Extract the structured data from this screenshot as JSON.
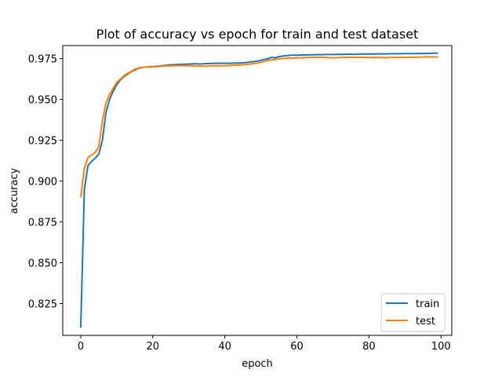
{
  "chart_data": {
    "type": "line",
    "title": "Plot of accuracy vs epoch for train and test dataset",
    "xlabel": "epoch",
    "ylabel": "accuracy",
    "xlim": [
      -5,
      103
    ],
    "ylim": [
      0.8055,
      0.983
    ],
    "xticks": [
      0,
      20,
      40,
      60,
      80,
      100
    ],
    "yticks": [
      0.825,
      0.85,
      0.875,
      0.9,
      0.925,
      0.95,
      0.975
    ],
    "ytick_labels": [
      "0.825",
      "0.850",
      "0.875",
      "0.900",
      "0.925",
      "0.950",
      "0.975"
    ],
    "grid": false,
    "legend_position": "lower right",
    "x": [
      0,
      1,
      2,
      3,
      4,
      5,
      6,
      7,
      8,
      9,
      10,
      11,
      12,
      13,
      14,
      15,
      16,
      17,
      18,
      19,
      20,
      21,
      22,
      23,
      24,
      25,
      26,
      27,
      28,
      29,
      30,
      31,
      32,
      33,
      34,
      35,
      36,
      37,
      38,
      39,
      40,
      41,
      42,
      43,
      44,
      45,
      46,
      47,
      48,
      49,
      50,
      51,
      52,
      53,
      54,
      55,
      56,
      57,
      58,
      59,
      60,
      61,
      62,
      63,
      64,
      65,
      66,
      67,
      68,
      69,
      70,
      71,
      72,
      73,
      74,
      75,
      76,
      77,
      78,
      79,
      80,
      81,
      82,
      83,
      84,
      85,
      86,
      87,
      88,
      89,
      90,
      91,
      92,
      93,
      94,
      95,
      96,
      97,
      98,
      99
    ],
    "series": [
      {
        "name": "train",
        "color": "#1f77b4",
        "values": [
          0.8105,
          0.895,
          0.9095,
          0.912,
          0.914,
          0.9165,
          0.925,
          0.942,
          0.95,
          0.955,
          0.959,
          0.962,
          0.964,
          0.9655,
          0.967,
          0.968,
          0.969,
          0.9695,
          0.9698,
          0.97,
          0.97,
          0.9703,
          0.9705,
          0.9708,
          0.971,
          0.9712,
          0.9713,
          0.9714,
          0.9715,
          0.9716,
          0.9717,
          0.9718,
          0.9718,
          0.9717,
          0.9718,
          0.972,
          0.972,
          0.9721,
          0.9721,
          0.9722,
          0.9722,
          0.9721,
          0.9722,
          0.9723,
          0.9723,
          0.9725,
          0.9726,
          0.973,
          0.9732,
          0.9735,
          0.974,
          0.9745,
          0.975,
          0.9758,
          0.9755,
          0.9762,
          0.9765,
          0.9768,
          0.977,
          0.9772,
          0.977,
          0.9773,
          0.9772,
          0.9773,
          0.9773,
          0.9774,
          0.9774,
          0.9774,
          0.9775,
          0.9775,
          0.9775,
          0.9776,
          0.9776,
          0.9776,
          0.9777,
          0.9777,
          0.9776,
          0.9777,
          0.9778,
          0.9778,
          0.9778,
          0.9778,
          0.9779,
          0.9779,
          0.9779,
          0.9779,
          0.978,
          0.978,
          0.978,
          0.978,
          0.9781,
          0.9781,
          0.9781,
          0.9781,
          0.9782,
          0.9781,
          0.9782,
          0.9782,
          0.9783,
          0.9783
        ]
      },
      {
        "name": "test",
        "color": "#ff7f0e",
        "values": [
          0.8905,
          0.908,
          0.9145,
          0.916,
          0.9175,
          0.921,
          0.937,
          0.948,
          0.953,
          0.957,
          0.9605,
          0.9625,
          0.9645,
          0.966,
          0.9672,
          0.9685,
          0.9692,
          0.9696,
          0.9698,
          0.9698,
          0.9699,
          0.9701,
          0.9703,
          0.9705,
          0.9706,
          0.9706,
          0.9707,
          0.9707,
          0.9708,
          0.9707,
          0.9707,
          0.9706,
          0.9705,
          0.9705,
          0.9704,
          0.9704,
          0.9705,
          0.9706,
          0.9706,
          0.9706,
          0.9707,
          0.9707,
          0.9709,
          0.971,
          0.9711,
          0.9712,
          0.9714,
          0.9717,
          0.972,
          0.9723,
          0.9728,
          0.9733,
          0.974,
          0.9742,
          0.9745,
          0.9748,
          0.975,
          0.9752,
          0.9753,
          0.9753,
          0.9754,
          0.9755,
          0.9756,
          0.9757,
          0.9757,
          0.9758,
          0.9758,
          0.9757,
          0.9757,
          0.9756,
          0.9755,
          0.9755,
          0.9757,
          0.9757,
          0.9757,
          0.9758,
          0.9758,
          0.9758,
          0.9758,
          0.9757,
          0.9757,
          0.9756,
          0.9757,
          0.9757,
          0.9756,
          0.9756,
          0.9757,
          0.9757,
          0.9757,
          0.9758,
          0.9758,
          0.9759,
          0.9758,
          0.9759,
          0.9759,
          0.976,
          0.976,
          0.976,
          0.976,
          0.976
        ]
      }
    ]
  }
}
